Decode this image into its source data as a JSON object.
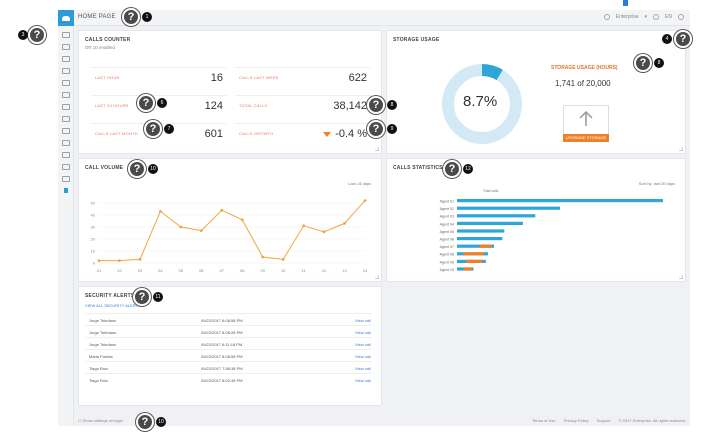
{
  "header": {
    "title": "HOME PAGE",
    "user": "Enterprise",
    "lang": "EN"
  },
  "calls_counter": {
    "title": "CALLS COUNTER",
    "subtitle": "DR 10 enabled",
    "cells": [
      {
        "label": "LAST HOUR",
        "value": "16"
      },
      {
        "label": "CALLS LAST WEEK",
        "value": "622"
      },
      {
        "label": "LAST 24 HOURS",
        "value": "124"
      },
      {
        "label": "TOTAL CALLS",
        "value": "38,142"
      },
      {
        "label": "CALLS LAST MONTH",
        "value": "601"
      },
      {
        "label": "CALLS GROWTH",
        "value": "-0.4 %"
      }
    ]
  },
  "storage": {
    "title": "STORAGE USAGE",
    "percent": "8.7%",
    "usage_title": "STORAGE USAGE (HOURS)",
    "usage_value": "1,741 of 20,000",
    "upgrade_label": "UPGRADE STORAGE",
    "fraction": 0.087
  },
  "call_volume": {
    "title": "CALL VOLUME",
    "filter": "Last 14 days"
  },
  "call_stats": {
    "title": "CALLS STATISTICS",
    "filter": "Sort by: last 30 days",
    "legend": "Total calls"
  },
  "security": {
    "title": "SECURITY ALERTS",
    "link": "VIEW ALL SECURITY ALERTS",
    "rows": [
      {
        "name": "Jorge Toledano",
        "time": "09/22/2017 8:08:58 PM",
        "action": "View call"
      },
      {
        "name": "Jorge Toledano",
        "time": "09/22/2017 8:06:28 PM",
        "action": "View call"
      },
      {
        "name": "Jorge Toledano",
        "time": "09/22/2017 8:11:18 PM",
        "action": "View call"
      },
      {
        "name": "Maria Puebla",
        "time": "09/22/2017 8:08:58 PM",
        "action": "View call"
      },
      {
        "name": "Tiago Ruiz",
        "time": "09/22/2017 7:58:38 PM",
        "action": "View call"
      },
      {
        "name": "Tiago Ruiz",
        "time": "09/22/2017 8:02:48 PM",
        "action": "View call"
      }
    ]
  },
  "footer": {
    "left": "Show settings on login",
    "links": [
      "Terms of Use",
      "Privacy Policy",
      "Support",
      "© 2017 Enterprise. All rights reserved."
    ]
  },
  "annotations": [
    "1",
    "2",
    "3",
    "4",
    "5",
    "6",
    "7",
    "8",
    "9",
    "10",
    "11",
    "12",
    "13"
  ],
  "chart_data": [
    {
      "type": "line",
      "x": [
        "01",
        "02",
        "03",
        "04",
        "05",
        "06",
        "07",
        "08",
        "09",
        "10",
        "11",
        "12",
        "13",
        "14"
      ],
      "series": [
        {
          "values": [
            2,
            2,
            3,
            43,
            30,
            27,
            44,
            36,
            5,
            3,
            31,
            26,
            33,
            52
          ]
        }
      ],
      "ylim": [
        0,
        60
      ],
      "yticks": [
        "0",
        "10",
        "20",
        "30",
        "40",
        "50"
      ],
      "color": "#f0a640"
    },
    {
      "type": "bar",
      "categories": [
        "Agent 01",
        "Agent 02",
        "Agent 03",
        "Agent 04",
        "Agent 05",
        "Agent 06",
        "Agent 07",
        "Agent 08",
        "Agent 09",
        "Agent 10"
      ],
      "series": [
        {
          "values": [
            100,
            50,
            38,
            32,
            23,
            22,
            18,
            15,
            14,
            8
          ],
          "color": "#2ea6d8"
        },
        {
          "values": [
            0,
            0,
            0,
            0,
            0,
            0,
            6,
            10,
            8,
            4
          ],
          "color": "#f07f2a"
        }
      ]
    }
  ]
}
